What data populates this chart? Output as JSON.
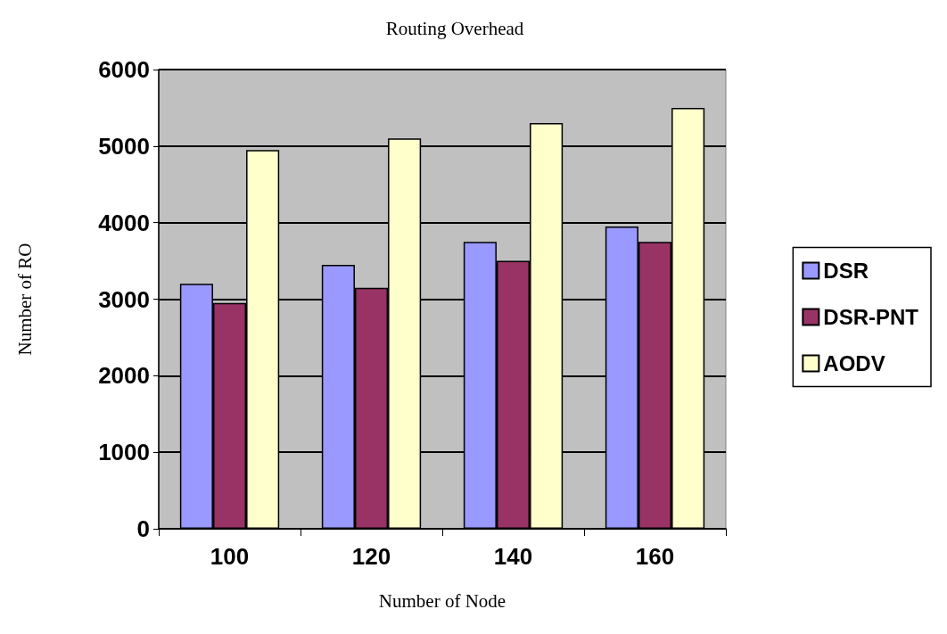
{
  "chart_data": {
    "type": "bar",
    "title": "Routing Overhead",
    "xlabel": "Number of Node",
    "ylabel": "Number of RO",
    "categories": [
      "100",
      "120",
      "140",
      "160"
    ],
    "series": [
      {
        "name": "DSR",
        "color": "#9999ff",
        "values": [
          3200,
          3450,
          3750,
          3950
        ]
      },
      {
        "name": "DSR-PNT",
        "color": "#993366",
        "values": [
          2950,
          3150,
          3500,
          3750
        ]
      },
      {
        "name": "AODV",
        "color": "#ffffcc",
        "values": [
          4950,
          5100,
          5300,
          5500
        ]
      }
    ],
    "ylim": [
      0,
      6000
    ],
    "yticks": [
      0,
      1000,
      2000,
      3000,
      4000,
      5000,
      6000
    ],
    "grid": "y",
    "legend": "right"
  }
}
